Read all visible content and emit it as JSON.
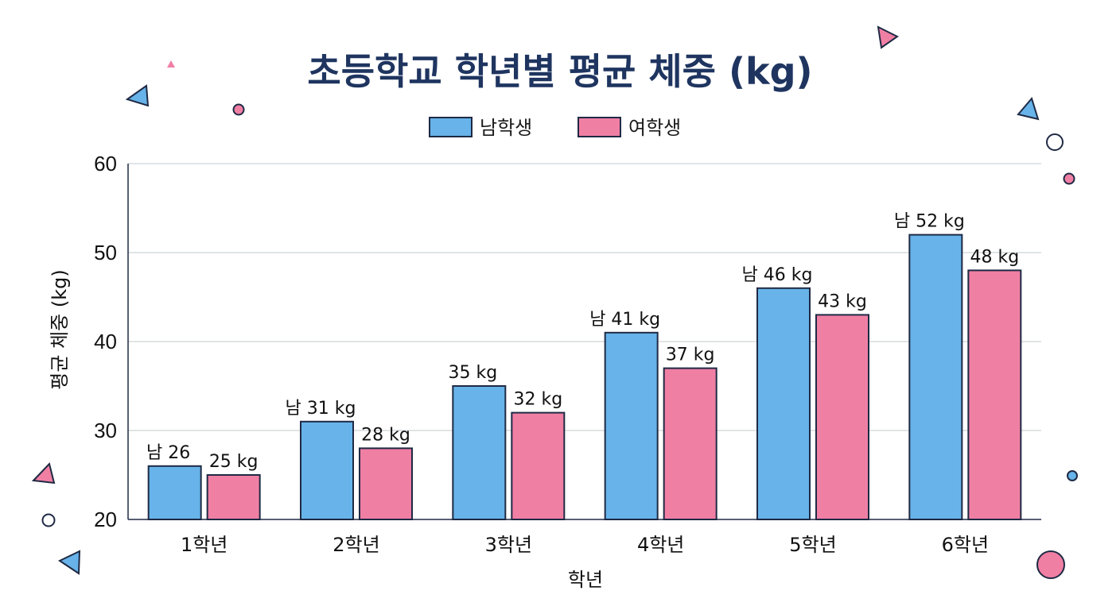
{
  "chart_data": {
    "type": "bar",
    "title": "초등학교 학년별 평균 체중 (kg)",
    "xlabel": "학년",
    "ylabel": "평균 체중 (kg)",
    "categories": [
      "1학년",
      "2학년",
      "3학년",
      "4학년",
      "5학년",
      "6학년"
    ],
    "series": [
      {
        "name": "남학생",
        "color": "#67b3ea",
        "values": [
          26,
          31,
          35,
          41,
          46,
          52
        ],
        "labels": [
          "남 26",
          "남 31 kg",
          "35 kg",
          "남 41 kg",
          "남 46 kg",
          "남 52 kg"
        ]
      },
      {
        "name": "여학생",
        "color": "#f07fa4",
        "values": [
          25,
          28,
          32,
          37,
          43,
          48
        ],
        "labels": [
          "25 kg",
          "28 kg",
          "32 kg",
          "37 kg",
          "43 kg",
          "48 kg"
        ]
      }
    ],
    "ylim": [
      20,
      60
    ],
    "yticks": [
      20,
      30,
      40,
      50,
      60
    ],
    "grid": true,
    "legend_position": "top-center"
  },
  "decoration_colors": {
    "blue": "#67b3ea",
    "pink": "#f07fa4",
    "outline": "#1f2a44"
  }
}
